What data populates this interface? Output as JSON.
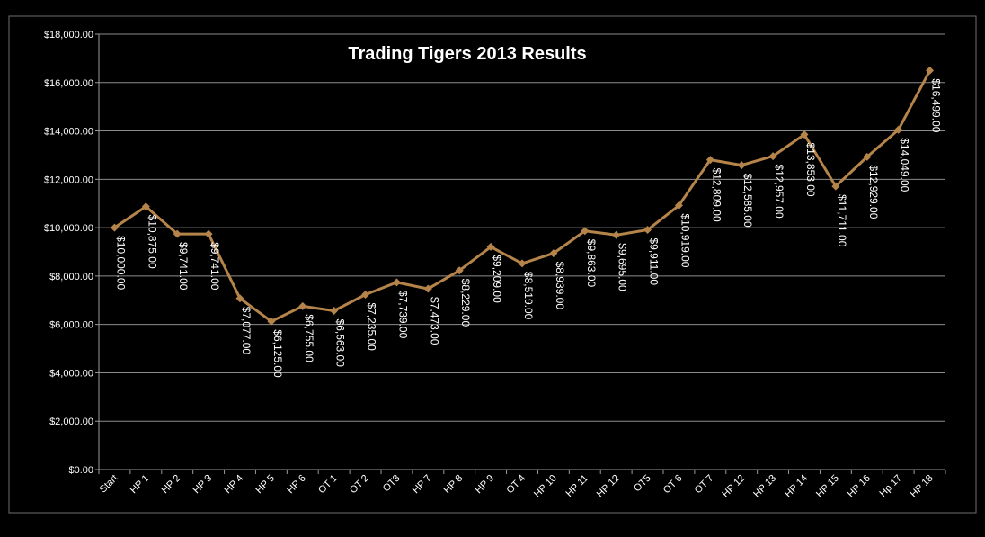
{
  "chart_data": {
    "type": "line",
    "title": "Trading Tigers 2013 Results",
    "xlabel": "",
    "ylabel": "",
    "ylim": [
      0,
      18000
    ],
    "yticks": [
      0,
      2000,
      4000,
      6000,
      8000,
      10000,
      12000,
      14000,
      16000,
      18000
    ],
    "ytick_labels": [
      "$0.00",
      "$2,000.00",
      "$4,000.00",
      "$6,000.00",
      "$8,000.00",
      "$10,000.00",
      "$12,000.00",
      "$14,000.00",
      "$16,000.00",
      "$18,000.00"
    ],
    "grid": true,
    "legend": "none",
    "line_color": "#b5844a",
    "gridline_color": "#8c8c8c",
    "background_color": "#000000",
    "categories": [
      "Start",
      "HP 1",
      "HP 2",
      "HP 3",
      "HP 4",
      "HP 5",
      "HP 6",
      "OT 1",
      "OT 2",
      "OT3",
      "HP 7",
      "HP 8",
      "HP 9",
      "OT 4",
      "HP 10",
      "HP 11",
      "HP 12",
      "OT5",
      "OT 6",
      "OT 7",
      "HP 12",
      "HP 13",
      "HP 14",
      "HP 15",
      "HP 16",
      "Hp 17",
      "HP 18"
    ],
    "series": [
      {
        "values": [
          10000,
          10875,
          9741,
          9741,
          7077,
          6125,
          6755,
          6563,
          7235,
          7739,
          7473,
          8229,
          9209,
          8519,
          8939,
          9863,
          9695,
          9911,
          10919,
          12809,
          12585,
          12957,
          13853,
          11711,
          12929,
          14049,
          16499
        ],
        "data_labels": [
          "$10,000.00",
          "$10,875.00",
          "$9,741.00",
          "$9,741.00",
          "$7,077.00",
          "$6,125.00",
          "$6,755.00",
          "$6,563.00",
          "$7,235.00",
          "$7,739.00",
          "$7,473.00",
          "$8,229.00",
          "$9,209.00",
          "$8,519.00",
          "$8,939.00",
          "$9,863.00",
          "$9,695.00",
          "$9,911.00",
          "$10,919.00",
          "$12,809.00",
          "$12,585.00",
          "$12,957.00",
          "$13,853.00",
          "$11,711.00",
          "$12,929.00",
          "$14,049.00",
          "$16,499.00"
        ]
      }
    ]
  }
}
